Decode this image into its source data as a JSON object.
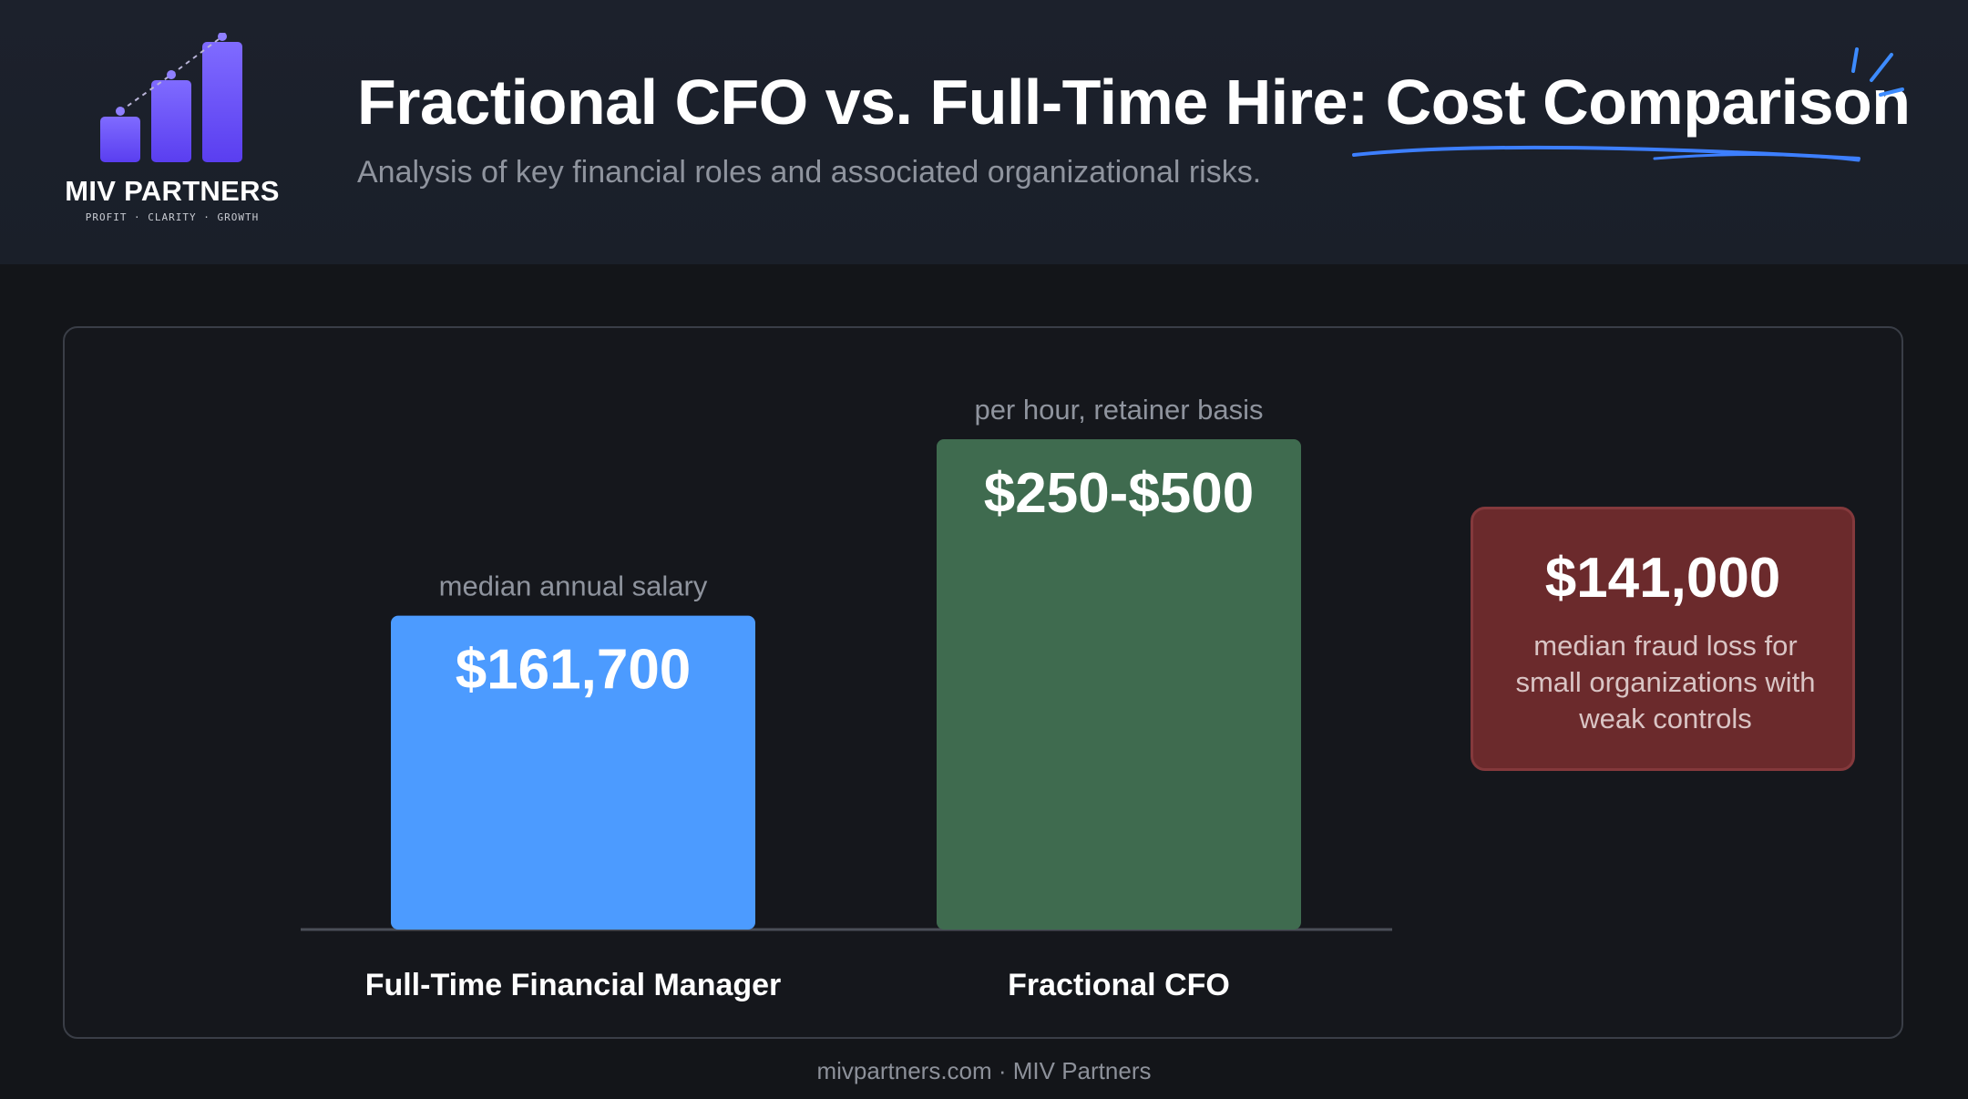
{
  "header": {
    "logo": {
      "name": "MIV PARTNERS",
      "tagline": "PROFIT · CLARITY · GROWTH"
    },
    "title": "Fractional CFO vs. Full-Time Hire: Cost Comparison",
    "subtitle": "Analysis of key financial roles and associated organizational risks."
  },
  "chart_data": {
    "type": "bar",
    "categories": [
      "Full-Time Financial Manager",
      "Fractional CFO"
    ],
    "value_labels": [
      "$161,700",
      "$250-$500"
    ],
    "value_notes": [
      "median annual salary",
      "per hour, retainer basis"
    ],
    "relative_heights": [
      0.64,
      1.0
    ],
    "bar_colors": [
      "#4c9bff",
      "#3f6b4f"
    ],
    "title": "",
    "xlabel": "",
    "ylabel": ""
  },
  "callout": {
    "value": "$141,000",
    "description": "median fraud loss for small organizations with weak controls"
  },
  "footer": {
    "text": "mivpartners.com · MIV Partners"
  }
}
